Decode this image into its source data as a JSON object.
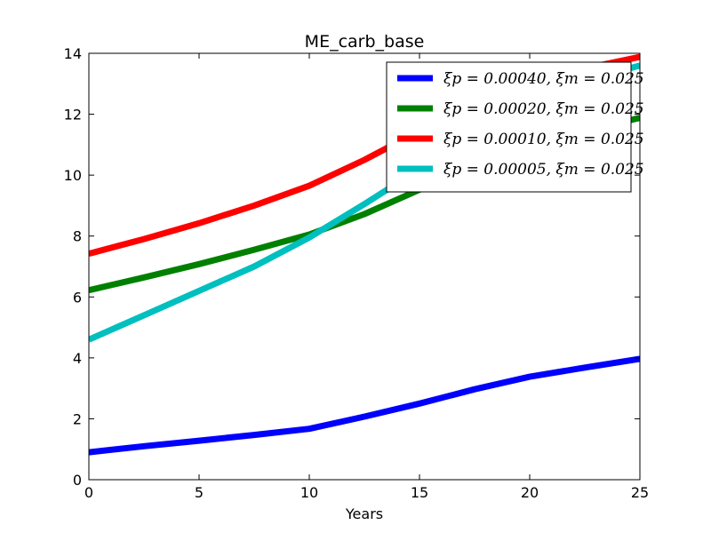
{
  "chart_data": {
    "type": "line",
    "title": "ME_carb_base",
    "xlabel": "Years",
    "ylabel": "",
    "xlim": [
      0,
      25
    ],
    "ylim": [
      0,
      14
    ],
    "xticks": [
      0,
      5,
      10,
      15,
      20,
      25
    ],
    "yticks": [
      0,
      2,
      4,
      6,
      8,
      10,
      12,
      14
    ],
    "grid": false,
    "legend_position": "top-right",
    "series": [
      {
        "name": "ξp = 0.00040, ξm = 0.025",
        "color": "#0000ff",
        "x": [
          0,
          2.5,
          5,
          7.5,
          10,
          12.5,
          15,
          17.5,
          20,
          22.5,
          25
        ],
        "y": [
          0.9,
          1.1,
          1.28,
          1.47,
          1.67,
          2.07,
          2.5,
          2.97,
          3.38,
          3.68,
          3.97
        ]
      },
      {
        "name": "ξp = 0.00020, ξm = 0.025",
        "color": "#008000",
        "x": [
          0,
          2.5,
          5,
          7.5,
          10,
          12.5,
          15,
          17.5,
          20,
          22.5,
          25
        ],
        "y": [
          6.22,
          6.64,
          7.08,
          7.55,
          8.05,
          8.72,
          9.52,
          10.35,
          11.05,
          11.45,
          11.88
        ]
      },
      {
        "name": "ξp = 0.00010, ξm = 0.025",
        "color": "#ff0000",
        "x": [
          0,
          2.5,
          5,
          7.5,
          10,
          12.5,
          15,
          17.5,
          20,
          22.5,
          25
        ],
        "y": [
          7.42,
          7.9,
          8.42,
          9.0,
          9.65,
          10.5,
          11.45,
          12.35,
          13.05,
          13.5,
          13.88
        ]
      },
      {
        "name": "ξp = 0.00005, ξm = 0.025",
        "color": "#00bfbf",
        "x": [
          0,
          2.5,
          5,
          7.5,
          10,
          12.5,
          15,
          17.5,
          20,
          22.5,
          25
        ],
        "y": [
          4.6,
          5.4,
          6.2,
          7.0,
          7.95,
          9.05,
          10.2,
          11.4,
          12.45,
          13.1,
          13.6
        ]
      }
    ]
  }
}
